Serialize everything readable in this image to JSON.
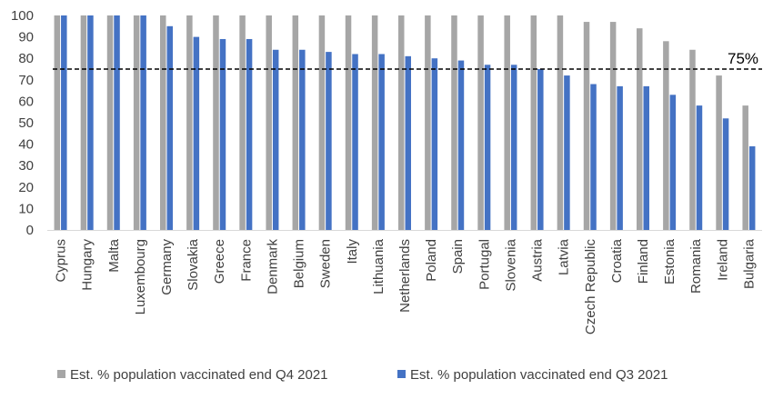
{
  "chart_data": {
    "type": "bar",
    "categories": [
      "Cyprus",
      "Hungary",
      "Malta",
      "Luxembourg",
      "Germany",
      "Slovakia",
      "Greece",
      "France",
      "Denmark",
      "Belgium",
      "Sweden",
      "Italy",
      "Lithuania",
      "Netherlands",
      "Poland",
      "Spain",
      "Portugal",
      "Slovenia",
      "Austria",
      "Latvia",
      "Czech Republic",
      "Croatia",
      "Finland",
      "Estonia",
      "Romania",
      "Ireland",
      "Bulgaria"
    ],
    "series": [
      {
        "name": "Est. % population vaccinated end Q4 2021",
        "color": "#a6a6a6",
        "values": [
          100,
          100,
          100,
          100,
          100,
          100,
          100,
          100,
          100,
          100,
          100,
          100,
          100,
          100,
          100,
          100,
          100,
          100,
          100,
          100,
          97,
          97,
          94,
          88,
          84,
          72,
          58
        ]
      },
      {
        "name": "Est. % population vaccinated end Q3 2021",
        "color": "#4472c4",
        "values": [
          100,
          100,
          100,
          100,
          95,
          90,
          89,
          89,
          84,
          84,
          83,
          82,
          82,
          81,
          80,
          79,
          77,
          77,
          75,
          72,
          68,
          67,
          67,
          63,
          58,
          52,
          39
        ]
      }
    ],
    "yticks": [
      "0",
      "10",
      "20",
      "30",
      "40",
      "50",
      "60",
      "70",
      "80",
      "90",
      "100"
    ],
    "ylim": [
      0,
      100
    ],
    "reference_line": {
      "value": 75,
      "label": "75%",
      "style": "dashed",
      "color": "#000000"
    },
    "grid": false,
    "legend_position": "bottom"
  }
}
